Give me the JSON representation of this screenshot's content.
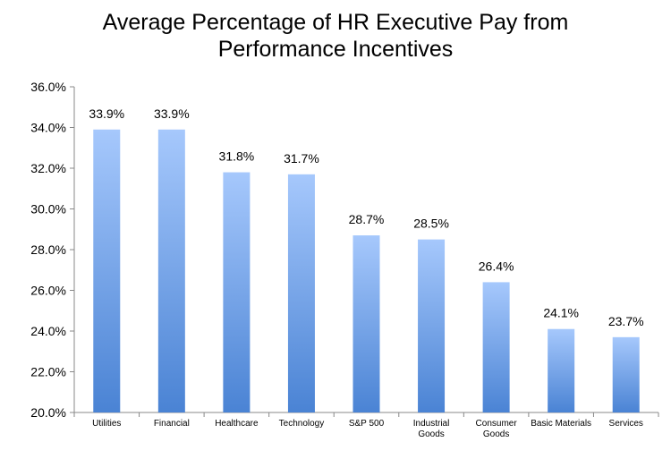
{
  "chart_data": {
    "type": "bar",
    "title_lines": [
      "Average Percentage of HR Executive Pay from",
      "Performance Incentives"
    ],
    "categories": [
      [
        "Utilities"
      ],
      [
        "Financial"
      ],
      [
        "Healthcare"
      ],
      [
        "Technology"
      ],
      [
        "S&P 500"
      ],
      [
        "Industrial",
        "Goods"
      ],
      [
        "Consumer",
        "Goods"
      ],
      [
        "Basic Materials"
      ],
      [
        "Services"
      ]
    ],
    "values": [
      33.9,
      33.9,
      31.8,
      31.7,
      28.7,
      28.5,
      26.4,
      24.1,
      23.7
    ],
    "value_labels": [
      "33.9%",
      "33.9%",
      "31.8%",
      "31.7%",
      "28.7%",
      "28.5%",
      "26.4%",
      "24.1%",
      "23.7%"
    ],
    "y_ticks": [
      "20.0%",
      "22.0%",
      "24.0%",
      "26.0%",
      "28.0%",
      "30.0%",
      "32.0%",
      "34.0%",
      "36.0%"
    ],
    "ylim": [
      20,
      36
    ],
    "grid": false,
    "legend": "none",
    "bar_gradient": {
      "top": "#a6c8fc",
      "bottom": "#4a83d4"
    },
    "axis_color": "#888888"
  }
}
